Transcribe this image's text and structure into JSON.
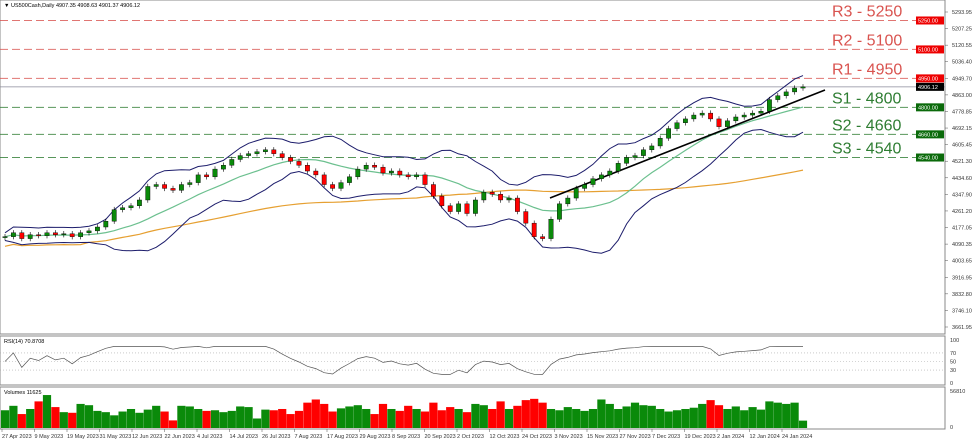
{
  "header": {
    "symbol": "US500Cash,Daily",
    "ohlc": "4907.35 4908.63 4901.37 4906.12"
  },
  "colors": {
    "bull": "#0a8a0a",
    "bear": "#ff0000",
    "resistance": "#d9534f",
    "support": "#2e7d32",
    "bollinger": "#1c1c6b",
    "ma_fast": "#6cc08f",
    "ma_slow": "#e6a032",
    "trendline": "#000000"
  },
  "levels": [
    {
      "label": "R3 - 5250",
      "price": 5250,
      "tag": "5250.00",
      "kind": "resistance"
    },
    {
      "label": "R2 - 5100",
      "price": 5100,
      "tag": "5100.00",
      "kind": "resistance"
    },
    {
      "label": "R1 - 4950",
      "price": 4950,
      "tag": "4950.00",
      "kind": "resistance"
    },
    {
      "label": "S1 - 4800",
      "price": 4800,
      "tag": "4800.00",
      "kind": "support"
    },
    {
      "label": "S2 - 4660",
      "price": 4660,
      "tag": "4660.00",
      "kind": "support"
    },
    {
      "label": "S3 - 4540",
      "price": 4540,
      "tag": "4540.00",
      "kind": "support"
    }
  ],
  "current_price": {
    "price": 4906.12,
    "tag": "4906.12"
  },
  "chart_data": {
    "type": "candlestick",
    "ylim": [
      3661.95,
      5293.95
    ],
    "y_ticks": [
      "5293.95",
      "5207.25",
      "5120.55",
      "5036.40",
      "4949.70",
      "4863.00",
      "4778.85",
      "4692.15",
      "4605.45",
      "4521.30",
      "4434.60",
      "4347.90",
      "4261.20",
      "4177.05",
      "4090.35",
      "4003.65",
      "3916.95",
      "3832.80",
      "3746.10",
      "3661.95"
    ],
    "x_ticks": [
      "27 Apr 2023",
      "9 May 2023",
      "19 May 2023",
      "31 May 2023",
      "12 Jun 2023",
      "22 Jun 2023",
      "4 Jul 2023",
      "14 Jul 2023",
      "26 Jul 2023",
      "7 Aug 2023",
      "17 Aug 2023",
      "29 Aug 2023",
      "8 Sep 2023",
      "20 Sep 2023",
      "2 Oct 2023",
      "12 Oct 2023",
      "24 Oct 2023",
      "3 Nov 2023",
      "15 Nov 2023",
      "27 Nov 2023",
      "7 Dec 2023",
      "19 Dec 2023",
      "2 Jan 2024",
      "12 Jan 2024",
      "24 Jan 2024"
    ],
    "closes": [
      4130,
      4150,
      4120,
      4140,
      4135,
      4150,
      4140,
      4145,
      4130,
      4150,
      4160,
      4180,
      4210,
      4270,
      4280,
      4290,
      4320,
      4390,
      4400,
      4380,
      4370,
      4400,
      4410,
      4450,
      4440,
      4480,
      4500,
      4530,
      4550,
      4560,
      4570,
      4580,
      4560,
      4540,
      4520,
      4500,
      4470,
      4450,
      4400,
      4380,
      4410,
      4440,
      4480,
      4500,
      4490,
      4460,
      4470,
      4450,
      4440,
      4450,
      4400,
      4340,
      4290,
      4260,
      4300,
      4250,
      4320,
      4360,
      4350,
      4320,
      4330,
      4260,
      4200,
      4130,
      4120,
      4220,
      4300,
      4330,
      4380,
      4400,
      4430,
      4450,
      4470,
      4510,
      4540,
      4550,
      4580,
      4600,
      4640,
      4690,
      4720,
      4740,
      4760,
      4770,
      4740,
      4700,
      4730,
      4750,
      4760,
      4770,
      4780,
      4840,
      4860,
      4880,
      4900,
      4906.12
    ],
    "trendline": {
      "from_price": 4330,
      "to_price": 4890
    },
    "rsi": {
      "label": "RSI(14) 70.8708",
      "levels": [
        "100",
        "70",
        "50",
        "30",
        "0"
      ]
    },
    "volume": {
      "label": "Volumes 11625",
      "max_label": "56810",
      "min_label": "0",
      "max": 56810,
      "values": [
        28000,
        35000,
        22000,
        30000,
        42000,
        52000,
        33000,
        25000,
        24000,
        38000,
        36000,
        27000,
        25000,
        20000,
        26000,
        30000,
        24000,
        29000,
        35000,
        26000,
        12000,
        35000,
        34000,
        30000,
        27000,
        28000,
        25000,
        27000,
        34000,
        33000,
        15000,
        29000,
        28000,
        30000,
        22000,
        27000,
        40000,
        45000,
        38000,
        26000,
        31000,
        34000,
        36000,
        30000,
        22000,
        38000,
        30000,
        27000,
        35000,
        30000,
        26000,
        40000,
        28000,
        33000,
        30000,
        25000,
        38000,
        36000,
        30000,
        42000,
        30000,
        35000,
        44000,
        46000,
        40000,
        30000,
        28000,
        33000,
        30000,
        27000,
        30000,
        45000,
        38000,
        30000,
        34000,
        40000,
        36000,
        35000,
        30000,
        26000,
        28000,
        30000,
        32000,
        38000,
        44000,
        36000,
        30000,
        34000,
        28000,
        33000,
        29000,
        42000,
        40000,
        38000,
        40000,
        11625
      ]
    }
  }
}
